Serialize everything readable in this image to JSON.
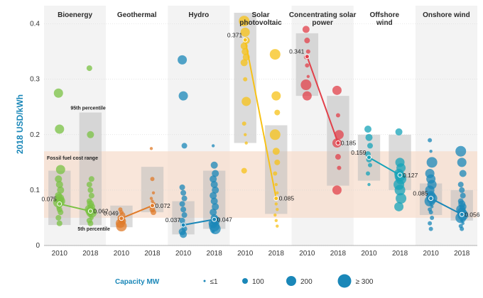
{
  "chart_data": {
    "type": "scatter",
    "ylabel": "2018 USD/kWh",
    "ylim": [
      0,
      0.42
    ],
    "yticks": [
      "0",
      "0.1",
      "0.2",
      "0.3",
      "0.4"
    ],
    "fossil_band": {
      "label": "Fossil fuel cost range",
      "range": [
        0.05,
        0.17
      ]
    },
    "annotations": {
      "p95": "95th percentile",
      "p5": "5th percentile"
    },
    "x_years": [
      "2010",
      "2018"
    ],
    "technologies": [
      {
        "name": "Bioenergy",
        "color": "#7ac143",
        "y2010": {
          "label": "0.075",
          "value": 0.075,
          "box": [
            0.037,
            0.135
          ]
        },
        "y2018": {
          "label": "0.062",
          "value": 0.062,
          "box": [
            0.037,
            0.24
          ]
        },
        "pts2010": [
          0.275,
          0.21,
          0.137,
          0.12,
          0.11,
          0.1,
          0.09,
          0.085,
          0.08,
          0.078,
          0.075,
          0.072,
          0.068,
          0.065,
          0.06,
          0.05,
          0.04
        ],
        "pts2018": [
          0.32,
          0.2,
          0.12,
          0.11,
          0.1,
          0.09,
          0.08,
          0.075,
          0.07,
          0.065,
          0.062,
          0.06,
          0.057,
          0.055,
          0.05,
          0.045,
          0.04
        ]
      },
      {
        "name": "Geothermal",
        "color": "#e07b2a",
        "y2010": {
          "label": "0.049",
          "value": 0.049,
          "box": [
            0.033,
            0.072
          ]
        },
        "y2018": {
          "label": "0.072",
          "value": 0.072,
          "box": [
            0.06,
            0.142
          ]
        },
        "pts2010": [
          0.065,
          0.06,
          0.055,
          0.05,
          0.047,
          0.044,
          0.04,
          0.035
        ],
        "pts2018": [
          0.175,
          0.12,
          0.095,
          0.085,
          0.08,
          0.075,
          0.07,
          0.065,
          0.06
        ]
      },
      {
        "name": "Hydro",
        "color": "#1a87b8",
        "y2010": {
          "label": "0.037",
          "value": 0.037,
          "box": [
            0.02,
            0.08
          ]
        },
        "y2018": {
          "label": "0.047",
          "value": 0.047,
          "box": [
            0.03,
            0.135
          ]
        },
        "pts2010": [
          0.335,
          0.27,
          0.18,
          0.105,
          0.095,
          0.085,
          0.075,
          0.065,
          0.055,
          0.045,
          0.037,
          0.03,
          0.025,
          0.02
        ],
        "pts2018": [
          0.18,
          0.145,
          0.13,
          0.12,
          0.11,
          0.1,
          0.09,
          0.08,
          0.07,
          0.06,
          0.05,
          0.045,
          0.04,
          0.035,
          0.03,
          0.025
        ]
      },
      {
        "name": "Solar photovoltaic",
        "color": "#f7c117",
        "y2010": {
          "label": "0.371",
          "value": 0.371,
          "box": [
            0.185,
            0.42
          ]
        },
        "y2018": {
          "label": "0.085",
          "value": 0.085,
          "box": [
            0.057,
            0.217
          ]
        },
        "pts2010": [
          0.405,
          0.385,
          0.37,
          0.36,
          0.35,
          0.34,
          0.33,
          0.3,
          0.26,
          0.22,
          0.2,
          0.185,
          0.135
        ],
        "pts2018": [
          0.345,
          0.27,
          0.24,
          0.2,
          0.17,
          0.15,
          0.13,
          0.11,
          0.095,
          0.085,
          0.075,
          0.065,
          0.055,
          0.045,
          0.035
        ]
      },
      {
        "name": "Concentrating solar power",
        "color": "#e2404a",
        "y2010": {
          "label": "0.341",
          "value": 0.341,
          "box": [
            0.27,
            0.383
          ]
        },
        "y2018": {
          "label": "0.185",
          "value": 0.185,
          "box": [
            0.108,
            0.27
          ]
        },
        "pts2010": [
          0.39,
          0.37,
          0.35,
          0.34,
          0.325,
          0.305,
          0.29,
          0.27
        ],
        "pts2018": [
          0.28,
          0.235,
          0.2,
          0.185,
          0.16,
          0.14,
          0.1
        ]
      },
      {
        "name": "Offshore wind",
        "color": "#16a3b8",
        "y2010": {
          "label": "0.159",
          "value": 0.159,
          "box": [
            0.117,
            0.2
          ]
        },
        "y2018": {
          "label": "0.127",
          "value": 0.127,
          "box": [
            0.1,
            0.2
          ]
        },
        "pts2010": [
          0.21,
          0.195,
          0.18,
          0.165,
          0.155,
          0.145,
          0.13,
          0.11
        ],
        "pts2018": [
          0.205,
          0.15,
          0.14,
          0.13,
          0.125,
          0.12,
          0.11,
          0.1,
          0.085,
          0.07
        ]
      },
      {
        "name": "Onshore wind",
        "color": "#1a87b8",
        "y2010": {
          "label": "0.085",
          "value": 0.085,
          "box": [
            0.055,
            0.112
          ]
        },
        "y2018": {
          "label": "0.056",
          "value": 0.056,
          "box": [
            0.045,
            0.1
          ]
        },
        "pts2010": [
          0.19,
          0.17,
          0.15,
          0.13,
          0.12,
          0.11,
          0.1,
          0.09,
          0.085,
          0.08,
          0.075,
          0.07,
          0.065,
          0.06,
          0.05,
          0.04,
          0.03
        ],
        "pts2018": [
          0.17,
          0.15,
          0.13,
          0.11,
          0.1,
          0.09,
          0.08,
          0.075,
          0.07,
          0.065,
          0.06,
          0.055,
          0.05,
          0.045,
          0.04,
          0.035,
          0.03
        ]
      }
    ],
    "legend": {
      "title": "Capacity MW",
      "items": [
        "≤1",
        "100",
        "200",
        "≥ 300"
      ],
      "color": "#1a87b8"
    }
  }
}
